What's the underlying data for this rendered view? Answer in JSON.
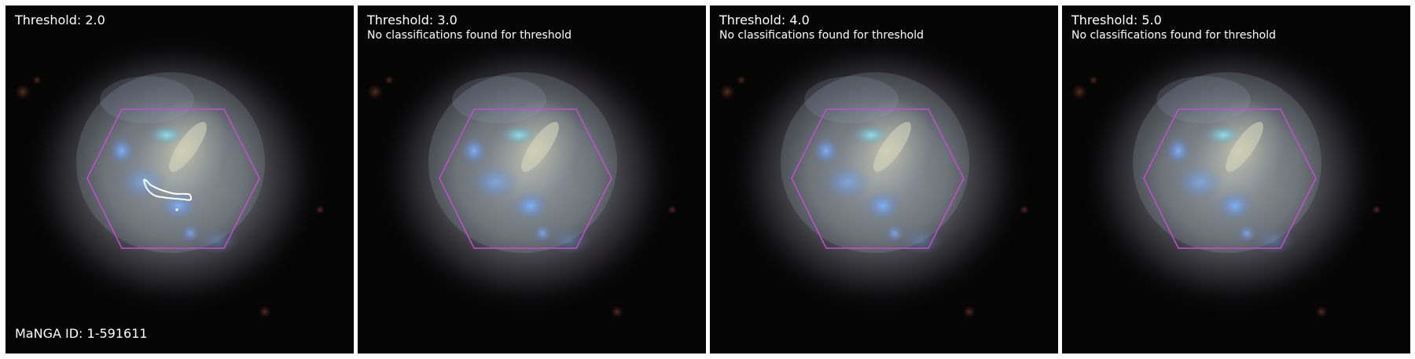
{
  "figure": {
    "manga_id_label": "MaNGA ID: 1-591611",
    "panels": [
      {
        "title": "Threshold: 2.0",
        "note": "",
        "has_contour": true
      },
      {
        "title": "Threshold: 3.0",
        "note": "No classifications found for threshold",
        "has_contour": false
      },
      {
        "title": "Threshold: 4.0",
        "note": "No classifications found for threshold",
        "has_contour": false
      },
      {
        "title": "Threshold: 5.0",
        "note": "No classifications found for threshold",
        "has_contour": false
      }
    ]
  },
  "colors": {
    "background": "#050505",
    "hexagon": "#c34fd2",
    "contour": "#ffffff",
    "text": "#ffffff",
    "panel_gap": "#ffffff"
  }
}
